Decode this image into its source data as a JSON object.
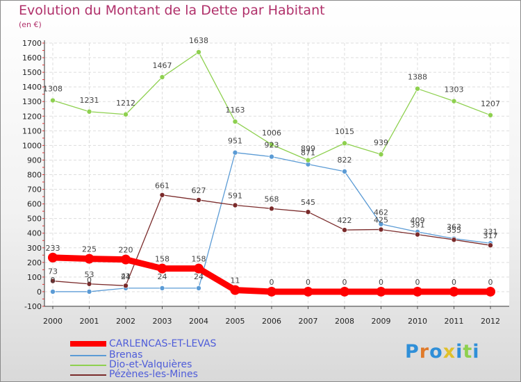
{
  "chart_data": {
    "type": "line",
    "title": "Evolution du Montant de la Dette par Habitant",
    "subtitle": "(en €)",
    "xlabel": "",
    "ylabel": "",
    "ylim": [
      -100,
      1700
    ],
    "yticks": [
      -100,
      0,
      100,
      200,
      300,
      400,
      500,
      600,
      700,
      800,
      900,
      1000,
      1100,
      1200,
      1300,
      1400,
      1500,
      1600,
      1700
    ],
    "categories": [
      "2000",
      "2001",
      "2002",
      "2003",
      "2004",
      "2005",
      "2006",
      "2007",
      "2008",
      "2009",
      "2010",
      "2011",
      "2012"
    ],
    "grid": true,
    "legend_position": "bottom-left",
    "series": [
      {
        "name": "CARLENCAS-ET-LEVAS",
        "color": "#ff0000",
        "values": [
          233,
          225,
          220,
          158,
          158,
          11,
          0,
          0,
          0,
          0,
          0,
          0,
          0
        ]
      },
      {
        "name": "Brenas",
        "color": "#5b9bd5",
        "values": [
          0,
          0,
          24,
          24,
          24,
          951,
          923,
          871,
          822,
          462,
          409,
          363,
          331
        ]
      },
      {
        "name": "Dio-et-Valquières",
        "color": "#8ed04f",
        "values": [
          1308,
          1231,
          1212,
          1467,
          1638,
          1163,
          1006,
          899,
          1015,
          939,
          1388,
          1303,
          1207
        ]
      },
      {
        "name": "Pézènes-les-Mines",
        "color": "#7a2a2a",
        "values": [
          73,
          53,
          41,
          661,
          627,
          591,
          568,
          545,
          422,
          425,
          391,
          355,
          317
        ]
      }
    ]
  },
  "logo": {
    "text": "Proxiti",
    "colors": [
      "#2f8fd8",
      "#e07a2a",
      "#2f8fd8",
      "#e0c02a",
      "#2f8fd8",
      "#8ed04f",
      "#2f8fd8"
    ]
  }
}
